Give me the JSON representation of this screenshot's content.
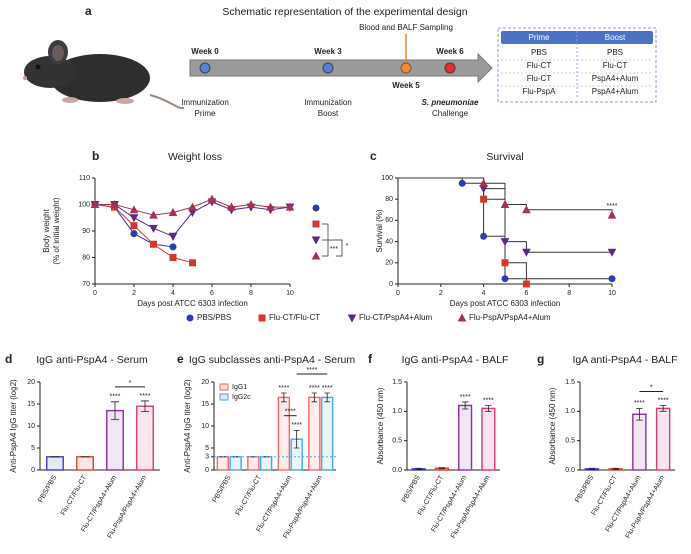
{
  "schematic": {
    "panel": "a",
    "title": "Schematic representation of the experimental design",
    "weeks": [
      "Week 0",
      "Week 3",
      "Week 5",
      "Week 6"
    ],
    "events": {
      "prime": [
        "Immunization",
        "Prime"
      ],
      "boost": [
        "Immunization",
        "Boost"
      ],
      "sampling": "Blood and BALF Sampling",
      "challenge": [
        "S. pneumoniae",
        "Challenge"
      ]
    },
    "table": {
      "header": [
        "Prime",
        "Boost"
      ],
      "rows": [
        [
          "PBS",
          "PBS"
        ],
        [
          "Flu-CT",
          "Flu-CT"
        ],
        [
          "Flu-CT",
          "PspA4+Alum"
        ],
        [
          "Flu-PspA",
          "PspA4+Alum"
        ]
      ]
    }
  },
  "chart_data": [
    {
      "type": "line",
      "panel": "b",
      "title": "Weight loss",
      "x_label": "Days post ATCC 6303 infection",
      "y_label": [
        "Body weight",
        "(% of initial weight)"
      ],
      "xlim": [
        0,
        10
      ],
      "xticks": [
        0,
        2,
        4,
        6,
        8,
        10
      ],
      "ylim": [
        70,
        110
      ],
      "yticks": [
        70,
        80,
        90,
        100,
        110
      ],
      "series": [
        {
          "name": "PBS/PBS",
          "color": "#2b3db5",
          "marker": "circle",
          "x": [
            0,
            1,
            2,
            3,
            4
          ],
          "values": [
            100,
            99,
            89,
            85,
            84
          ]
        },
        {
          "name": "Flu-CT/Flu-CT",
          "color": "#d3392b",
          "marker": "square",
          "x": [
            0,
            1,
            2,
            3,
            4,
            5
          ],
          "values": [
            100,
            99,
            92,
            85,
            80,
            78
          ]
        },
        {
          "name": "Flu-CT/PspA4+Alum",
          "color": "#5a2a85",
          "marker": "triangle-down",
          "x": [
            0,
            1,
            2,
            3,
            4,
            5,
            6,
            7,
            8,
            9,
            10
          ],
          "values": [
            100,
            100,
            95,
            91,
            88,
            97,
            101,
            98,
            99,
            98,
            99
          ]
        },
        {
          "name": "Flu-PspA/PspA4+Alum",
          "color": "#a33350",
          "marker": "triangle-up",
          "x": [
            0,
            1,
            2,
            3,
            4,
            5,
            6,
            7,
            8,
            9,
            10
          ],
          "values": [
            100,
            100,
            98,
            96,
            97,
            99,
            102,
            99,
            100,
            99,
            99
          ]
        }
      ],
      "annotations": [
        "***",
        "*"
      ]
    },
    {
      "type": "survival",
      "panel": "c",
      "title": "Survival",
      "x_label": "Days post ATCC 6303 infection",
      "y_label": "Survival (%)",
      "xlim": [
        0,
        10
      ],
      "xticks": [
        0,
        2,
        4,
        6,
        8,
        10
      ],
      "ylim": [
        0,
        100
      ],
      "yticks": [
        0,
        20,
        40,
        60,
        80,
        100
      ],
      "series": [
        {
          "color": "#2b3db5",
          "marker": "circle",
          "x": [
            0,
            3,
            4,
            5,
            10
          ],
          "values": [
            100,
            95,
            45,
            5,
            5
          ]
        },
        {
          "color": "#d3392b",
          "marker": "square",
          "x": [
            0,
            4,
            5,
            6
          ],
          "values": [
            100,
            80,
            20,
            0
          ]
        },
        {
          "color": "#5a2a85",
          "marker": "triangle-down",
          "x": [
            0,
            4,
            5,
            6,
            10
          ],
          "values": [
            100,
            90,
            40,
            30,
            30
          ]
        },
        {
          "color": "#a33350",
          "marker": "triangle-up",
          "x": [
            0,
            4,
            5,
            6,
            10
          ],
          "values": [
            100,
            95,
            75,
            70,
            65
          ]
        }
      ],
      "annotation": "****"
    },
    {
      "type": "bar",
      "panel": "d",
      "title": "IgG anti-PspA4 - Serum",
      "y_label": "Anti-PspA4 IgG titer (log2)",
      "categories": [
        "PBS/PBS",
        "Flu-CT/Flu-CT",
        "Flu-CT/PspA4+Alum",
        "Flu-PspA/PspA4+Alum"
      ],
      "values": [
        3,
        3,
        13.5,
        14.5
      ],
      "errors": [
        0,
        0,
        2,
        1.2
      ],
      "colors": [
        "#3a3fc0",
        "#e0412c",
        "#8a2ea0",
        "#e0347a"
      ],
      "ylim": [
        0,
        20
      ],
      "yticks": [
        0,
        5,
        10,
        15,
        20
      ],
      "significance": [
        null,
        null,
        "****",
        "****"
      ],
      "comparison": "*"
    },
    {
      "type": "grouped_bar",
      "panel": "e",
      "title": "IgG subclasses anti-PspA4 - Serum",
      "y_label": "Anti-PspA4 IgG titer (log2)",
      "categories": [
        "PBS/PBS",
        "Flu-CT/Flu-CT",
        "Flu-CT/PspA4+Alum",
        "Flu-PspA/PspA4+Alum"
      ],
      "series": [
        {
          "name": "IgG1",
          "color": "#f06a6a",
          "values": [
            3,
            3,
            16.5,
            16.5
          ],
          "errors": [
            0,
            0,
            1,
            1
          ],
          "significance": [
            null,
            null,
            "****",
            "****"
          ]
        },
        {
          "name": "IgG2c",
          "color": "#4aa8e0",
          "values": [
            3,
            3,
            7,
            16.5
          ],
          "errors": [
            0,
            0,
            2,
            1
          ],
          "significance": [
            null,
            null,
            "****",
            "****"
          ]
        }
      ],
      "limit_line": 3,
      "ylim": [
        0,
        20
      ],
      "yticks": [
        0,
        3,
        5,
        10,
        15,
        20
      ],
      "comparisons": [
        "****",
        "****"
      ]
    },
    {
      "type": "bar",
      "panel": "f",
      "title": "IgG anti-PspA4 - BALF",
      "y_label": "Absorbance (450 nm)",
      "categories": [
        "PBS/PBS",
        "Flu-CT/Flu-CT",
        "Flu-CT/PspA4+Alum",
        "Flu-PspA/PspA4+Alum"
      ],
      "values": [
        0.02,
        0.03,
        1.1,
        1.05
      ],
      "errors": [
        0.01,
        0.01,
        0.06,
        0.05
      ],
      "colors": [
        "#3a3fc0",
        "#e0412c",
        "#8a2ea0",
        "#e0347a"
      ],
      "ylim": [
        0,
        1.5
      ],
      "yticks": [
        {
          "value": 0,
          "label": "0.0"
        },
        {
          "value": 0.5,
          "label": "0.5"
        },
        {
          "value": 1,
          "label": "1.0"
        },
        {
          "value": 1.5,
          "label": "1.5"
        }
      ],
      "significance": [
        null,
        null,
        "****",
        "****"
      ]
    },
    {
      "type": "bar",
      "panel": "g",
      "title": "IgA anti-PspA4 - BALF",
      "y_label": "Absorbance (450 nm)",
      "categories": [
        "PBS/PBS",
        "Flu-CT/Flu-CT",
        "Flu-CT/PspA4+Alum",
        "Flu-PspA/PspA4+Alum"
      ],
      "values": [
        0.02,
        0.02,
        0.95,
        1.05
      ],
      "errors": [
        0.01,
        0.01,
        0.1,
        0.05
      ],
      "colors": [
        "#3a3fc0",
        "#e0412c",
        "#8a2ea0",
        "#e0347a"
      ],
      "ylim": [
        0,
        1.5
      ],
      "yticks": [
        {
          "value": 0,
          "label": "0.0"
        },
        {
          "value": 0.5,
          "label": "0.5"
        },
        {
          "value": 1,
          "label": "1.0"
        },
        {
          "value": 1.5,
          "label": "1.5"
        }
      ],
      "significance": [
        null,
        null,
        "****",
        "****"
      ],
      "comparison": "*"
    }
  ]
}
